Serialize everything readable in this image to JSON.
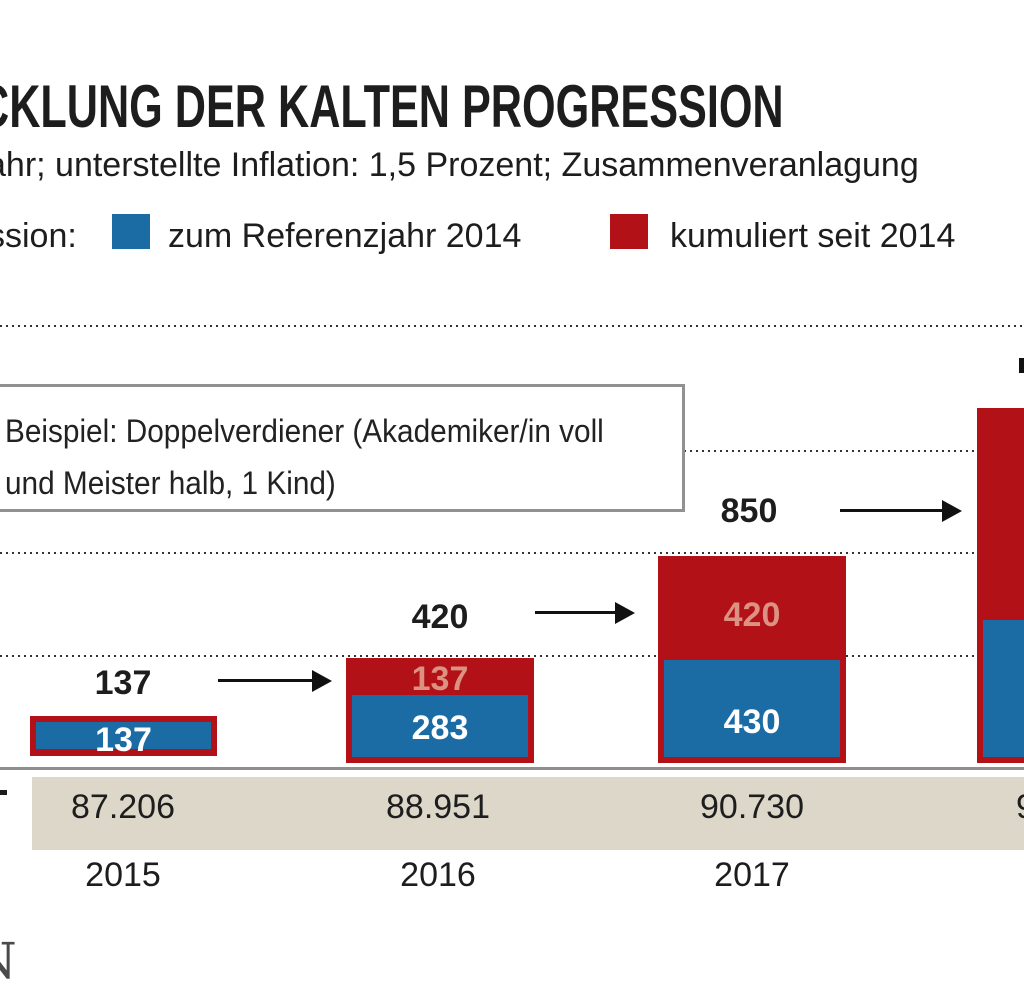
{
  "header": {
    "title_visible": "CKLUNG DER KALTEN PROGRESSION",
    "subtitle_visible": "ahr; unterstellte Inflation: 1,5 Prozent; Zusammenveranlagung"
  },
  "legend": {
    "prefix_visible": "ssion:",
    "items": [
      {
        "label": "zum Referenzjahr 2014",
        "color": "#1b6ba5"
      },
      {
        "label": "kumuliert seit 2014",
        "color": "#b11117"
      }
    ]
  },
  "annotation_box": {
    "line1": "Beispiel: Doppelverdiener (Akademiker/in voll",
    "line2": "und Meister halb, 1 Kind)"
  },
  "chart_data": {
    "type": "bar",
    "stacked": true,
    "legend_position": "top",
    "grid": "dotted horizontal level lines",
    "categories": [
      "2015",
      "2016",
      "2017",
      ""
    ],
    "series": [
      {
        "name": "zum Referenzjahr 2014",
        "color": "#1b6ba5",
        "values": [
          137,
          283,
          430,
          590
        ]
      },
      {
        "name": "kumuliert seit 2014",
        "color": "#b11117",
        "values": [
          0,
          137,
          420,
          850
        ]
      }
    ],
    "totals_visible": [
      "137",
      "420",
      "850"
    ],
    "bar_inner_labels": [
      {
        "ref": "137",
        "cumul": ""
      },
      {
        "ref": "283",
        "cumul": "137"
      },
      {
        "ref": "430",
        "cumul": "420"
      },
      {
        "ref": "",
        "cumul": ""
      }
    ],
    "income_row_values": [
      "87.206",
      "88.951",
      "90.730",
      "9"
    ],
    "note": "fourth bar cut off at right edge of image; its numeric labels are not visible and its values are estimated from bar heights",
    "ylim": [
      0,
      1750
    ]
  },
  "colors": {
    "bar_blue": "#1b6ba5",
    "bar_red": "#b11117",
    "salmon_value_text": "#dc9282",
    "beige_band": "#dcd7c8",
    "text_black": "#1d1d1e",
    "axis_gray": "#8e8e8e",
    "box_border_gray": "#919191"
  }
}
